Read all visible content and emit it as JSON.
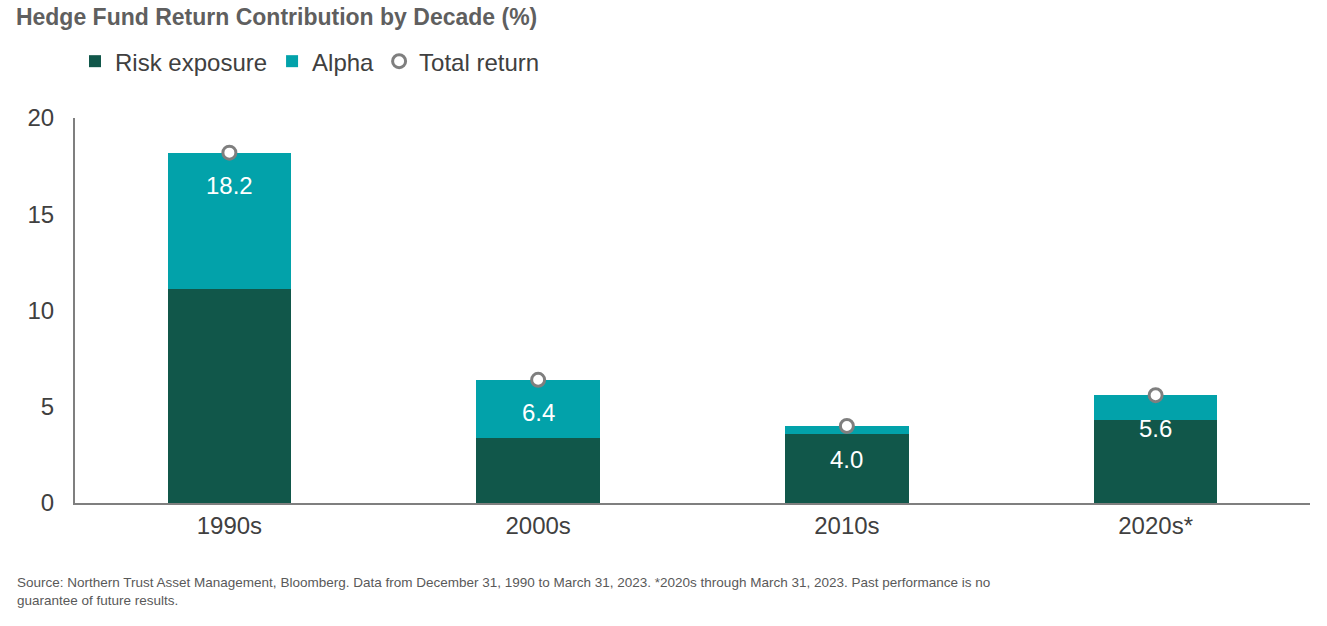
{
  "chart_data": {
    "type": "bar",
    "title": "Hedge Fund Return Contribution by Decade (%)",
    "categories": [
      "1990s",
      "2000s",
      "2010s",
      "2020s*"
    ],
    "series": [
      {
        "name": "Risk exposure",
        "type": "bar",
        "color": "#11574a",
        "values": [
          11.1,
          3.4,
          3.6,
          4.3
        ]
      },
      {
        "name": "Alpha",
        "type": "bar",
        "color": "#02a2aa",
        "values": [
          7.1,
          3.0,
          0.4,
          1.3
        ]
      },
      {
        "name": "Total return",
        "type": "scatter",
        "marker": "circle",
        "color": "#ffffff",
        "values": [
          18.2,
          6.4,
          4.0,
          5.6
        ],
        "value_labels": [
          "18.2",
          "6.4",
          "4.0",
          "5.6"
        ],
        "data_labels": true
      }
    ],
    "ylim": [
      0,
      20
    ],
    "yticks": [
      0,
      5,
      10,
      15,
      20
    ],
    "stacked": true,
    "grid": false,
    "legend": "top left",
    "source": [
      "Source: Northern Trust Asset Management, Bloomberg. Data from December 31, 1990 to March 31, 2023. *2020s through March 31, 2023. Past performance is no",
      "guarantee of future results."
    ]
  }
}
